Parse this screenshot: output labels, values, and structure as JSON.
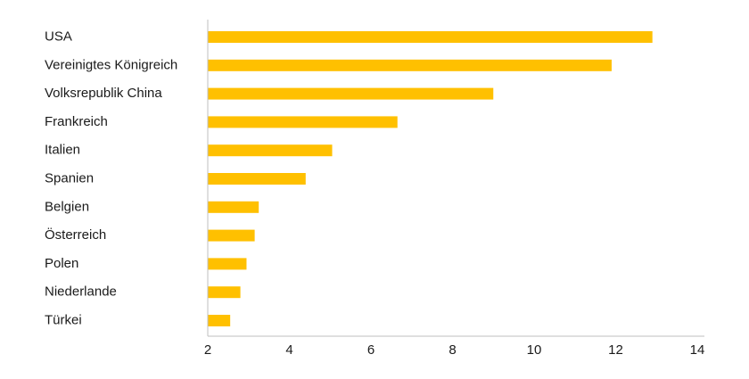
{
  "chart_data": {
    "type": "bar",
    "orientation": "horizontal",
    "title": "",
    "xlabel": "",
    "ylabel": "",
    "categories": [
      "USA",
      "Vereinigtes Königreich",
      "Volksrepublik China",
      "Frankreich",
      "Italien",
      "Spanien",
      "Belgien",
      "Österreich",
      "Polen",
      "Niederlande",
      "Türkei"
    ],
    "values": [
      12.9,
      11.9,
      9.0,
      6.65,
      5.05,
      4.4,
      3.25,
      3.15,
      2.95,
      2.8,
      2.55
    ],
    "xlim": [
      2,
      14
    ],
    "xticks": [
      "2",
      "4",
      "6",
      "8",
      "10",
      "12",
      "14"
    ],
    "grid": false,
    "bar_color": "#FFC000",
    "axis_color": "#bfbfbf"
  }
}
